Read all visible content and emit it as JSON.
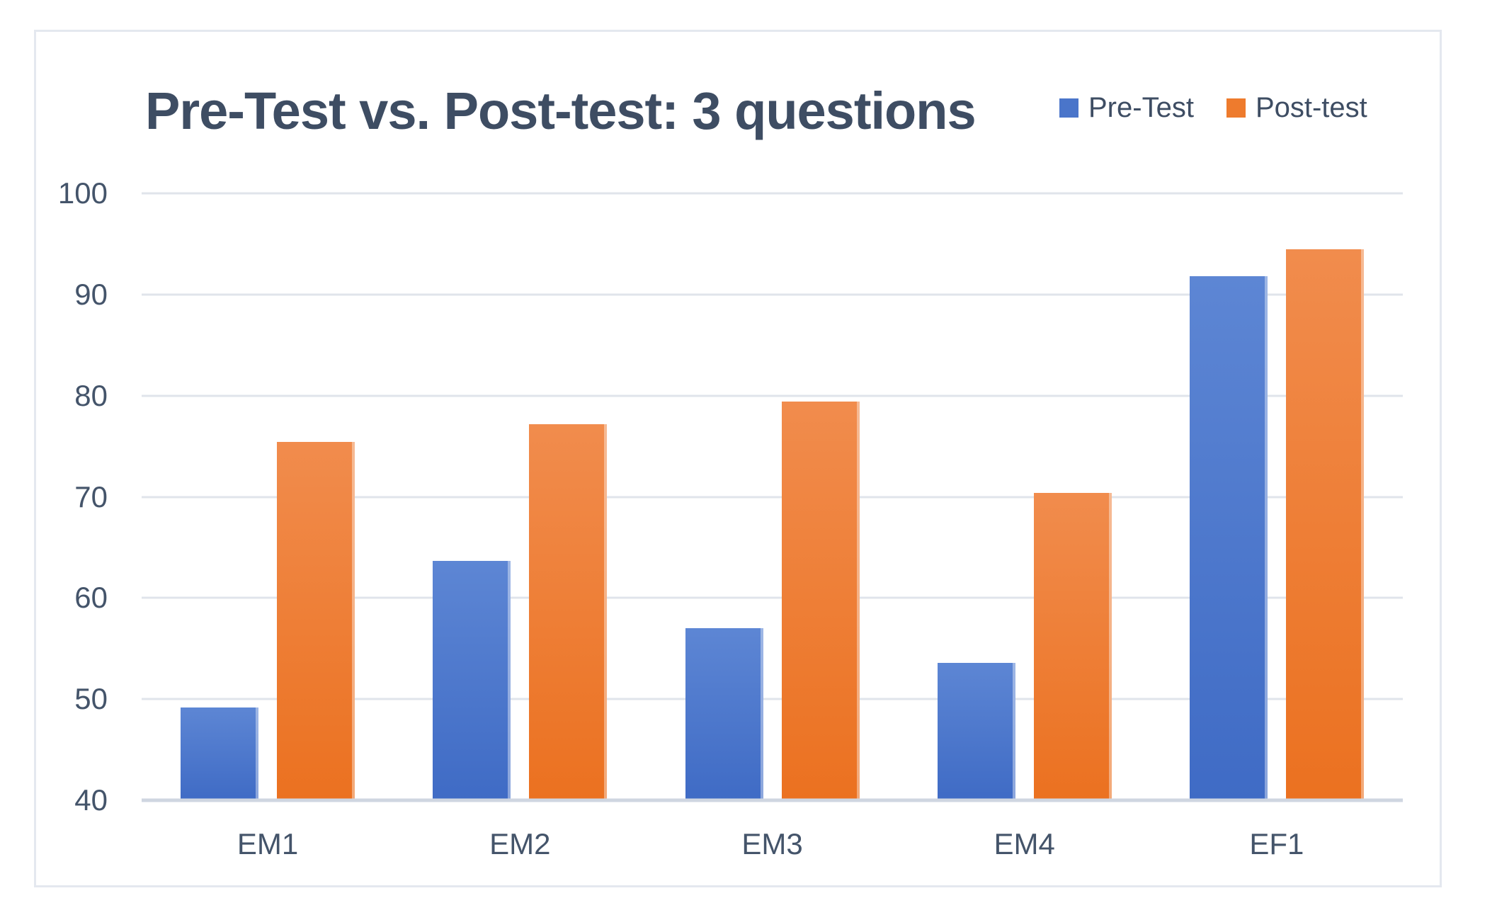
{
  "chart_data": {
    "type": "bar",
    "title": "Pre-Test vs. Post-test: 3 questions",
    "categories": [
      "EM1",
      "EM2",
      "EM3",
      "EM4",
      "EF1"
    ],
    "series": [
      {
        "name": "Pre-Test",
        "color": "#4a75ca",
        "gradient_top": "#5d86d4",
        "gradient_bottom": "#3f6bc5",
        "values": [
          49.2,
          63.7,
          57.0,
          53.6,
          91.8
        ]
      },
      {
        "name": "Post-test",
        "color": "#ee7b2d",
        "gradient_top": "#f18c4d",
        "gradient_bottom": "#eb7120",
        "values": [
          75.4,
          77.2,
          79.4,
          70.4,
          94.5
        ]
      }
    ],
    "xlabel": "",
    "ylabel": "",
    "ylim": [
      40,
      100
    ],
    "ytick_step": 10,
    "yticks": [
      100,
      90,
      80,
      70,
      60,
      50,
      40
    ],
    "grid": true,
    "legend_position": "top-right"
  },
  "style_colors": {
    "title_text": "#3e4d63",
    "tick_text": "#44546a",
    "gridline": "#e0e4eb",
    "axis_line": "#cfd6e1",
    "panel_border": "#e4e8ef",
    "background": "#ffffff"
  }
}
